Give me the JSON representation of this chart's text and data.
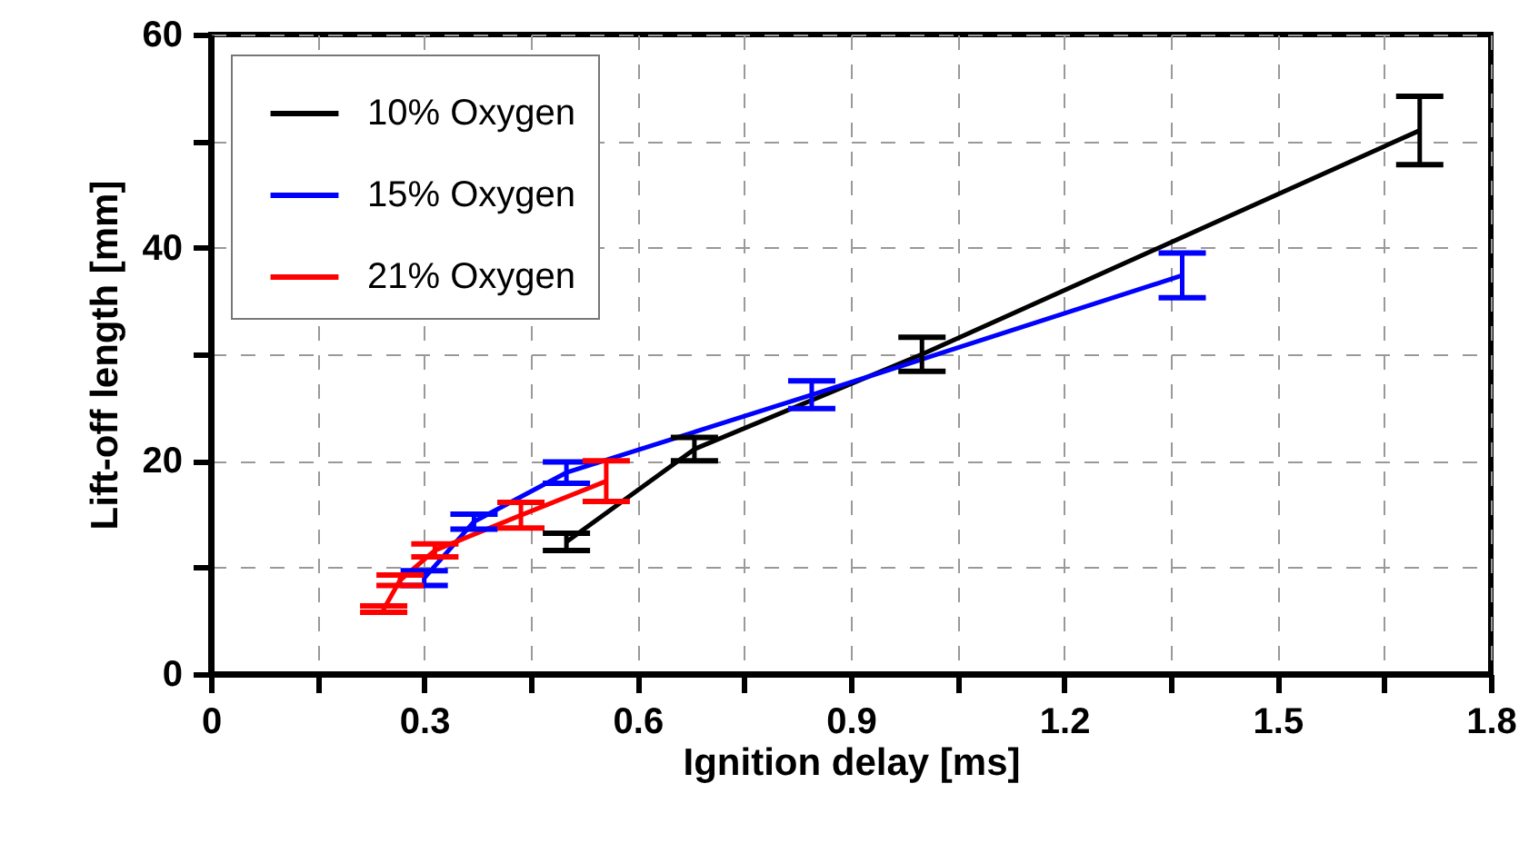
{
  "chart_data": {
    "type": "line",
    "xlabel": "Ignition delay [ms]",
    "ylabel": "Lift-off length [mm]",
    "xlim": [
      0,
      1.8
    ],
    "ylim": [
      0,
      60
    ],
    "xticks": [
      0,
      {
        "value": 0.15,
        "label": null
      },
      0.3,
      {
        "value": 0.45,
        "label": null
      },
      0.6,
      {
        "value": 0.75,
        "label": null
      },
      0.9,
      {
        "value": 1.05,
        "label": null
      },
      1.2,
      {
        "value": 1.35,
        "label": null
      },
      1.5,
      {
        "value": 1.65,
        "label": null
      },
      1.8
    ],
    "yticks": [
      0,
      {
        "value": 10,
        "label": null
      },
      20,
      {
        "value": 30,
        "label": null
      },
      40,
      {
        "value": 50,
        "label": null
      },
      60
    ],
    "grid": true,
    "legend": "top left",
    "marker": "none",
    "line_style": "solid",
    "series": [
      {
        "name": "10% Oxygen",
        "color": "#000000",
        "x": [
          0.5,
          0.68,
          1.0,
          1.7
        ],
        "values": [
          12.4,
          21.1,
          30.0,
          51.0
        ],
        "errors": [
          0.8,
          1.1,
          1.6,
          3.2
        ]
      },
      {
        "name": "15% Oxygen",
        "color": "#0000ff",
        "x": [
          0.3,
          0.37,
          0.5,
          0.845,
          1.366
        ],
        "values": [
          9.0,
          14.3,
          18.9,
          26.2,
          37.4
        ],
        "errors": [
          0.7,
          0.7,
          1.0,
          1.3,
          2.1
        ]
      },
      {
        "name": "21% Oxygen",
        "color": "#ff0000",
        "x": [
          0.243,
          0.266,
          0.315,
          0.436,
          0.556
        ],
        "values": [
          6.1,
          8.8,
          11.6,
          14.9,
          18.1
        ],
        "errors": [
          0.3,
          0.5,
          0.6,
          1.2,
          1.9
        ]
      }
    ]
  }
}
